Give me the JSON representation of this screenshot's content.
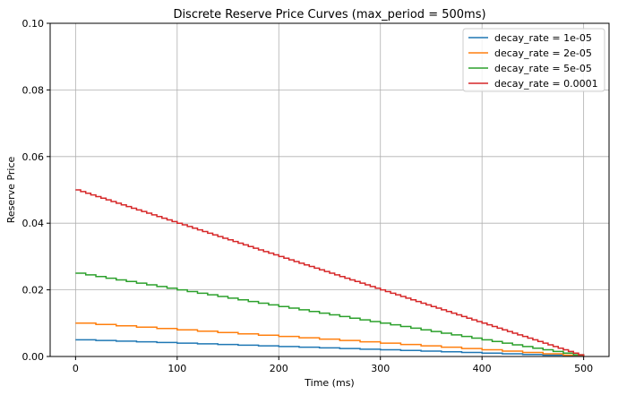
{
  "chart_data": {
    "type": "line",
    "title": "Discrete Reserve Price Curves (max_period = 500ms)",
    "xlabel": "Time (ms)",
    "ylabel": "Reserve Price",
    "xlim": [
      -25,
      525
    ],
    "ylim": [
      0,
      0.1
    ],
    "xticks": [
      0,
      100,
      200,
      300,
      400,
      500
    ],
    "yticks": [
      0.0,
      0.02,
      0.04,
      0.06,
      0.08,
      0.1
    ],
    "ytick_labels": [
      "0.00",
      "0.02",
      "0.04",
      "0.06",
      "0.08",
      "0.10"
    ],
    "grid": true,
    "legend_position": "top-right",
    "series": [
      {
        "name": "decay_rate = 1e-05",
        "color": "#1f77b4",
        "x": [
          0,
          500
        ],
        "y": [
          0.005,
          0.0
        ],
        "step": 20
      },
      {
        "name": "decay_rate = 2e-05",
        "color": "#ff7f0e",
        "x": [
          0,
          500
        ],
        "y": [
          0.01,
          0.0
        ],
        "step": 20
      },
      {
        "name": "decay_rate = 5e-05",
        "color": "#2ca02c",
        "x": [
          0,
          500
        ],
        "y": [
          0.025,
          0.0
        ],
        "step": 10
      },
      {
        "name": "decay_rate = 0.0001",
        "color": "#d62728",
        "x": [
          0,
          500
        ],
        "y": [
          0.05,
          0.0
        ],
        "step": 5
      }
    ]
  }
}
